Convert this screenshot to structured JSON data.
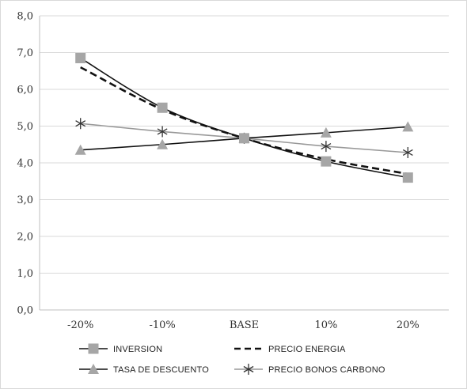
{
  "chart_data": {
    "type": "line",
    "categories": [
      "-20%",
      "-10%",
      "BASE",
      "10%",
      "20%"
    ],
    "y_ticks": [
      "0,0",
      "1,0",
      "2,0",
      "3,0",
      "4,0",
      "5,0",
      "6,0",
      "7,0",
      "8,0"
    ],
    "ylim": [
      0,
      8
    ],
    "grid": true,
    "legend_position": "bottom",
    "series": [
      {
        "name": "INVERSION",
        "values": [
          6.85,
          5.5,
          4.67,
          4.04,
          3.6
        ],
        "color": "#111111",
        "line_style": "solid",
        "marker": "square",
        "marker_color": "#a6a6a6"
      },
      {
        "name": "PRECIO ENERGIA",
        "values": [
          6.6,
          5.45,
          4.67,
          4.1,
          3.7
        ],
        "color": "#111111",
        "line_style": "dashed",
        "marker": "none",
        "marker_color": "#111111"
      },
      {
        "name": "TASA DE DESCUENTO",
        "values": [
          4.35,
          4.5,
          4.67,
          4.82,
          4.98
        ],
        "color": "#111111",
        "line_style": "solid",
        "marker": "triangle",
        "marker_color": "#a6a6a6"
      },
      {
        "name": "PRECIO BONOS CARBONO",
        "values": [
          5.07,
          4.85,
          4.67,
          4.45,
          4.28
        ],
        "color": "#999999",
        "line_style": "solid",
        "marker": "asterisk",
        "marker_color": "#333333"
      }
    ]
  }
}
